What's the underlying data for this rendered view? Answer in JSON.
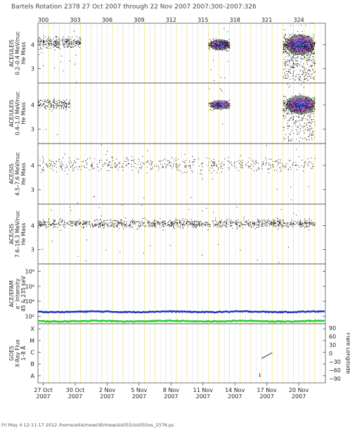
{
  "header": {
    "title": "Bartels Rotation 2378     27 Oct 2007 through 22 Nov 2007     2007:300–2007:326"
  },
  "footer": {
    "text": "Fri May  4 12:11:17 2012    /home/eit4/mew/idl/mew/sis055/sis055os_2378.ps"
  },
  "chart_data": [
    {
      "type": "scatter",
      "panel": "ace-uleis-low",
      "ylabel_lines": [
        "ACE/ULEIS",
        "0.2–0.4 MeV/nuc",
        "He Mass"
      ],
      "yticks": [
        "3",
        "4"
      ],
      "ylim": [
        2.4,
        4.9
      ],
      "xlim": [
        "2007-10-27",
        "2007-11-22"
      ],
      "top_ticks": [
        "300",
        "303",
        "306",
        "309",
        "312",
        "315",
        "318",
        "321",
        "324"
      ],
      "bands": [
        {
          "x0": "2007-10-27",
          "x1": "2007-10-31",
          "y": 4.1,
          "spread": 0.12,
          "n": 280,
          "density": "sparse"
        },
        {
          "x0": "2007-11-12",
          "x1": "2007-11-14",
          "y": 4.0,
          "spread": 0.12,
          "n": 220,
          "density": "burst"
        },
        {
          "x0": "2007-11-19",
          "x1": "2007-11-22",
          "y": 4.0,
          "spread": 0.22,
          "n": 700,
          "density": "intense"
        }
      ]
    },
    {
      "type": "scatter",
      "panel": "ace-uleis-high",
      "ylabel_lines": [
        "ACE/ULEIS",
        "0.4–1.0 MeV/nuc",
        "He Mass"
      ],
      "yticks": [
        "3",
        "4"
      ],
      "ylim": [
        2.4,
        4.9
      ],
      "bands": [
        {
          "x0": "2007-10-27",
          "x1": "2007-10-30",
          "y": 4.05,
          "spread": 0.1,
          "n": 160,
          "density": "sparse"
        },
        {
          "x0": "2007-11-12",
          "x1": "2007-11-14",
          "y": 4.0,
          "spread": 0.1,
          "n": 130,
          "density": "burst"
        },
        {
          "x0": "2007-11-19",
          "x1": "2007-11-22",
          "y": 4.0,
          "spread": 0.2,
          "n": 520,
          "density": "intense"
        }
      ]
    },
    {
      "type": "scatter",
      "panel": "ace-sis-low",
      "ylabel_lines": [
        "ACE/SIS",
        "4.5–7.6 MeV/nuc",
        "He Mass"
      ],
      "yticks": [
        "3",
        "4"
      ],
      "ylim": [
        2.4,
        4.9
      ],
      "bands": [
        {
          "x0": "2007-10-27",
          "x1": "2007-11-22",
          "y": 4.05,
          "spread": 0.16,
          "n": 520,
          "density": "sparse"
        }
      ]
    },
    {
      "type": "scatter",
      "panel": "ace-sis-high",
      "ylabel_lines": [
        "ACE/SIS",
        "7.6–16.3 MeV/nuc",
        "He Mass"
      ],
      "yticks": [
        "3",
        "4"
      ],
      "ylim": [
        2.4,
        4.9
      ],
      "bands": [
        {
          "x0": "2007-10-27",
          "x1": "2007-11-22",
          "y": 4.1,
          "spread": 0.09,
          "n": 1100,
          "density": "sparse"
        }
      ]
    },
    {
      "type": "line",
      "panel": "ace-epam",
      "ylabel_lines": [
        "ACE/EPAM",
        "e⁻ Intensity",
        "45 & 235 keV"
      ],
      "yticks": [
        "10²",
        "10⁴",
        "10⁶",
        "10⁸"
      ],
      "ylim_log10": [
        1,
        9
      ],
      "series": [
        {
          "color": "#1a2fc8",
          "level_log10": 2.6
        },
        {
          "color": "#22cc22",
          "level_log10": 1.35
        }
      ]
    },
    {
      "type": "line",
      "panel": "goes-xray",
      "ylabel_lines": [
        "GOES",
        "X-Ray Flux",
        "1–8 Å"
      ],
      "yticks": [
        "A",
        "B",
        "C",
        "M",
        "X"
      ],
      "ylim": [
        0,
        5.8
      ],
      "right_label": "Flare Longitude",
      "right_ticks": [
        "−90",
        "−60",
        "−30",
        "0",
        "30",
        "60",
        "90"
      ],
      "segments": [
        {
          "x0": "2007-11-17",
          "x1": "2007-11-18",
          "y0": 2.4,
          "y1": 2.95,
          "color": "#333333"
        }
      ],
      "flare_marks": [
        {
          "x": "2007-11-16T20:00",
          "y0": 0.55,
          "y1": 0.95,
          "color": "#ee3311"
        }
      ]
    }
  ],
  "x_axis": {
    "ticks": [
      {
        "top": "27 Oct",
        "bottom": "2007"
      },
      {
        "top": "30 Oct",
        "bottom": "2007"
      },
      {
        "top": "2 Nov",
        "bottom": "2007"
      },
      {
        "top": "5 Nov",
        "bottom": "2007"
      },
      {
        "top": "8 Nov",
        "bottom": "2007"
      },
      {
        "top": "11 Nov",
        "bottom": "2007"
      },
      {
        "top": "14 Nov",
        "bottom": "2007"
      },
      {
        "top": "17 Nov",
        "bottom": "2007"
      },
      {
        "top": "20 Nov",
        "bottom": "2007"
      }
    ]
  },
  "colors": {
    "day_grid": "#f0e27a",
    "noon_grid": "#cfe8f6",
    "axis": "#555555"
  }
}
